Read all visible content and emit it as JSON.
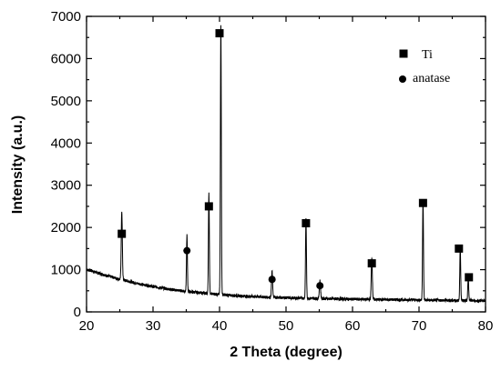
{
  "chart_data": {
    "type": "line",
    "title": "",
    "xlabel": "2 Theta (degree)",
    "ylabel": "Intensity (a.u.)",
    "xlim": [
      20,
      80
    ],
    "ylim": [
      0,
      7000
    ],
    "x_ticks": [
      20,
      30,
      40,
      50,
      60,
      70,
      80
    ],
    "y_ticks": [
      0,
      1000,
      2000,
      3000,
      4000,
      5000,
      6000,
      7000
    ],
    "grid": false,
    "legend_position": "top-right",
    "baseline": [
      [
        20,
        1000
      ],
      [
        21,
        960
      ],
      [
        22,
        910
      ],
      [
        23,
        860
      ],
      [
        24,
        820
      ],
      [
        25,
        770
      ],
      [
        26,
        740
      ],
      [
        27,
        700
      ],
      [
        28,
        660
      ],
      [
        29,
        630
      ],
      [
        30,
        600
      ],
      [
        31,
        575
      ],
      [
        32,
        550
      ],
      [
        33,
        525
      ],
      [
        34,
        505
      ],
      [
        35,
        485
      ],
      [
        36,
        470
      ],
      [
        37,
        455
      ],
      [
        38,
        440
      ],
      [
        39,
        425
      ],
      [
        40,
        415
      ],
      [
        41,
        400
      ],
      [
        42,
        390
      ],
      [
        43,
        380
      ],
      [
        44,
        372
      ],
      [
        45,
        365
      ],
      [
        46,
        358
      ],
      [
        47,
        350
      ],
      [
        48,
        345
      ],
      [
        49,
        340
      ],
      [
        50,
        335
      ],
      [
        51,
        330
      ],
      [
        52,
        327
      ],
      [
        53,
        323
      ],
      [
        54,
        320
      ],
      [
        55,
        317
      ],
      [
        56,
        314
      ],
      [
        57,
        311
      ],
      [
        58,
        308
      ],
      [
        59,
        305
      ],
      [
        60,
        302
      ],
      [
        62,
        298
      ],
      [
        64,
        294
      ],
      [
        66,
        290
      ],
      [
        68,
        286
      ],
      [
        70,
        282
      ],
      [
        72,
        278
      ],
      [
        74,
        274
      ],
      [
        76,
        270
      ],
      [
        78,
        266
      ],
      [
        80,
        262
      ]
    ],
    "peaks": [
      {
        "x": 25.3,
        "y": 1620,
        "width": 0.18
      },
      {
        "x": 35.1,
        "y": 1330,
        "width": 0.15
      },
      {
        "x": 38.4,
        "y": 2360,
        "width": 0.15
      },
      {
        "x": 40.2,
        "y": 6400,
        "width": 0.15
      },
      {
        "x": 47.9,
        "y": 620,
        "width": 0.18
      },
      {
        "x": 53.0,
        "y": 1880,
        "width": 0.15
      },
      {
        "x": 55.1,
        "y": 420,
        "width": 0.2
      },
      {
        "x": 62.9,
        "y": 1000,
        "width": 0.18
      },
      {
        "x": 70.6,
        "y": 2380,
        "width": 0.15
      },
      {
        "x": 76.2,
        "y": 1240,
        "width": 0.15
      },
      {
        "x": 77.4,
        "y": 560,
        "width": 0.15
      }
    ],
    "series": [
      {
        "name": "Ti",
        "marker": "square",
        "points": [
          {
            "x": 25.3,
            "y": 1850
          },
          {
            "x": 38.4,
            "y": 2500
          },
          {
            "x": 40.0,
            "y": 6600
          },
          {
            "x": 53.0,
            "y": 2100
          },
          {
            "x": 62.9,
            "y": 1150
          },
          {
            "x": 70.6,
            "y": 2580
          },
          {
            "x": 76.0,
            "y": 1500
          },
          {
            "x": 77.5,
            "y": 820
          }
        ]
      },
      {
        "name": "anatase",
        "marker": "circle",
        "points": [
          {
            "x": 35.1,
            "y": 1450
          },
          {
            "x": 47.9,
            "y": 770
          },
          {
            "x": 55.1,
            "y": 620
          }
        ]
      }
    ],
    "colors": {
      "line": "#000000",
      "marker": "#000000",
      "background": "#ffffff"
    }
  }
}
